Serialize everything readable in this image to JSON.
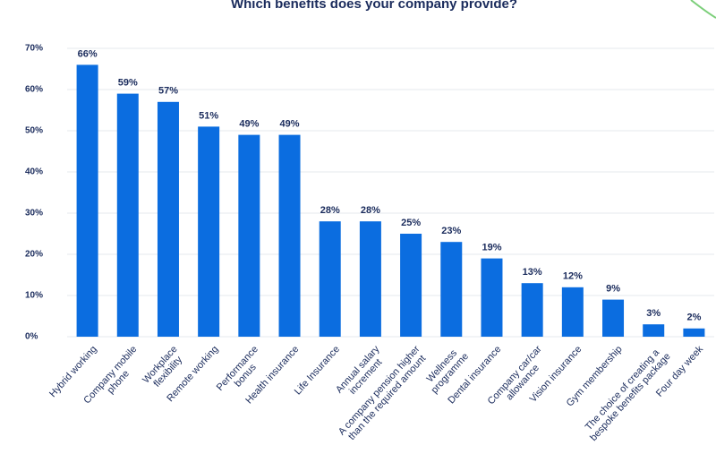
{
  "chart_data": {
    "type": "bar",
    "title": "Which benefits does your company provide?",
    "categories": [
      "Hybrid working",
      "Company mobile\nphone",
      "Workplace\nflexibility",
      "Remote working",
      "Performance\nbonus",
      "Health insurance",
      "Life Insurance",
      "Annual salary\nincrement",
      "A company pension higher\nthan the required amount",
      "Wellness\nprogramme",
      "Dental insurance",
      "Company car/car\nallowance",
      "Vision insurance",
      "Gym membership",
      "The choice of creating a\nbespoke benefits package",
      "Four day week"
    ],
    "values": [
      66,
      59,
      57,
      51,
      49,
      49,
      28,
      28,
      25,
      23,
      19,
      13,
      12,
      9,
      3,
      2
    ],
    "value_labels": [
      "66%",
      "59%",
      "57%",
      "51%",
      "49%",
      "49%",
      "28%",
      "28%",
      "25%",
      "23%",
      "19%",
      "13%",
      "12%",
      "9%",
      "3%",
      "2%"
    ],
    "color": "#0b6de0",
    "ylim": [
      0,
      70
    ],
    "yticks": [
      {
        "value": 0,
        "label": "0%"
      },
      {
        "value": 10,
        "label": "10%"
      },
      {
        "value": 20,
        "label": "20%"
      },
      {
        "value": 30,
        "label": "30%"
      },
      {
        "value": 40,
        "label": "40%"
      },
      {
        "value": 50,
        "label": "50%"
      },
      {
        "value": 60,
        "label": "60%"
      },
      {
        "value": 70,
        "label": "70%"
      }
    ],
    "grid": true
  }
}
